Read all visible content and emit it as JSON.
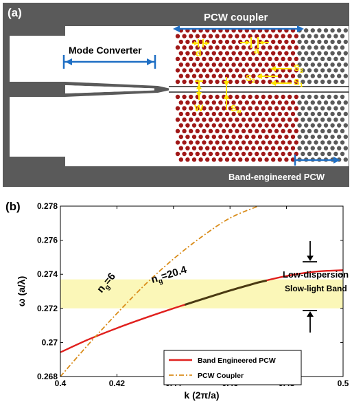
{
  "panel_a": {
    "label": "(a)",
    "title": "PCW coupler",
    "mode_converter": "Mode Converter",
    "d": "d",
    "a": "a",
    "s3": "S",
    "s3_sub": "3",
    "s2": "S",
    "s2_sub": "2",
    "s1": "S",
    "s1_sub": "1",
    "w": "W",
    "sw": "S",
    "sw_sub": "w",
    "band_pcw": "Band-engineered PCW",
    "colors": {
      "background": "#5a5a5a",
      "silicon": "#ffffff",
      "holes_coupler": "#a01818",
      "annotation": "#ffe500",
      "arrow": "#1f6fc4"
    }
  },
  "panel_b": {
    "label": "(b)",
    "annotation_ng6": "n",
    "annotation_ng6_sub": "g",
    "annotation_ng6_val": "=6",
    "annotation_ng20": "n",
    "annotation_ng20_sub": "g",
    "annotation_ng20_val": "=20.4",
    "band_label_1": "Low-dispersion",
    "band_label_2": "Slow-light Band",
    "band_region": [
      0.272,
      0.2737
    ],
    "band_color": "#fbf7b8"
  },
  "chart_data": {
    "type": "line",
    "xlabel": "k (2π/a)",
    "ylabel": "ω (a/λ)",
    "xlim": [
      0.4,
      0.5
    ],
    "ylim": [
      0.268,
      0.278
    ],
    "xticks": [
      0.4,
      0.42,
      0.44,
      0.46,
      0.48,
      0.5
    ],
    "xtick_labels": [
      "0.4",
      "0.42",
      "0.44",
      "0.46",
      "0.48",
      "0.5"
    ],
    "yticks": [
      0.268,
      0.27,
      0.272,
      0.274,
      0.276,
      0.278
    ],
    "ytick_labels": [
      "0.268",
      "0.27",
      "0.272",
      "0.274",
      "0.276",
      "0.278"
    ],
    "legend_position": "bottom-right",
    "series": [
      {
        "name": "Band Engineered PCW",
        "color": "#e0201e",
        "style": "solid",
        "x": [
          0.4,
          0.41,
          0.42,
          0.43,
          0.44,
          0.45,
          0.46,
          0.47,
          0.48,
          0.49,
          0.5
        ],
        "y": [
          0.26942,
          0.27018,
          0.27084,
          0.27144,
          0.272,
          0.27253,
          0.27305,
          0.27352,
          0.2739,
          0.27415,
          0.27424
        ]
      },
      {
        "name": "PCW Coupler",
        "color": "#d98c1a",
        "style": "dashdot",
        "x": [
          0.4,
          0.41,
          0.42,
          0.43,
          0.44,
          0.45,
          0.46,
          0.47
        ],
        "y": [
          0.268,
          0.2699,
          0.2717,
          0.2734,
          0.2749,
          0.2762,
          0.2773,
          0.278
        ]
      }
    ],
    "highlight_segment": {
      "x": [
        0.444,
        0.473
      ],
      "color": "#4a3a12"
    }
  }
}
